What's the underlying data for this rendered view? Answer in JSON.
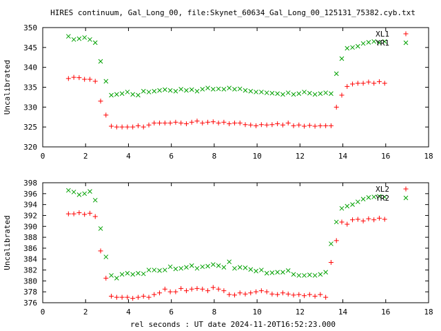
{
  "title": "HIRES continuum, Gal_Long_00, file:Skynet_60634_Gal_Long_00_125131_75382.cyb.txt",
  "xlabel": "rel seconds : UT date 2024-11-20T16:52:23.000",
  "colors": {
    "series_x": "#ff0000",
    "series_y": "#00a000"
  },
  "chart_data": [
    {
      "type": "scatter",
      "ylabel": "Uncalibrated",
      "xlim": [
        0,
        18
      ],
      "ylim": [
        320,
        350
      ],
      "xticks": [
        0,
        2,
        4,
        6,
        8,
        10,
        12,
        14,
        16,
        18
      ],
      "yticks": [
        320,
        325,
        330,
        335,
        340,
        345,
        350
      ],
      "legend_position": "top-right",
      "x": [
        1.2,
        1.45,
        1.7,
        1.95,
        2.2,
        2.45,
        2.7,
        2.95,
        3.2,
        3.45,
        3.7,
        3.95,
        4.2,
        4.45,
        4.7,
        4.95,
        5.2,
        5.45,
        5.7,
        5.95,
        6.2,
        6.45,
        6.7,
        6.95,
        7.2,
        7.45,
        7.7,
        7.95,
        8.2,
        8.45,
        8.7,
        8.95,
        9.2,
        9.45,
        9.7,
        9.95,
        10.2,
        10.45,
        10.7,
        10.95,
        11.2,
        11.45,
        11.7,
        11.95,
        12.2,
        12.45,
        12.7,
        12.95,
        13.2,
        13.45,
        13.7,
        13.95,
        14.2,
        14.45,
        14.7,
        14.95,
        15.2,
        15.45,
        15.7,
        15.95
      ],
      "series": [
        {
          "name": "XL1",
          "marker": "+",
          "values": [
            337.2,
            337.5,
            337.4,
            337.0,
            337.0,
            336.5,
            331.5,
            328.0,
            325.2,
            325.0,
            325.0,
            325.0,
            325.0,
            325.3,
            325.0,
            325.5,
            326.0,
            326.0,
            326.0,
            326.0,
            326.2,
            326.0,
            325.8,
            326.2,
            326.5,
            326.0,
            326.2,
            326.3,
            326.0,
            326.2,
            325.8,
            326.0,
            326.0,
            325.6,
            325.5,
            325.3,
            325.6,
            325.5,
            325.6,
            325.8,
            325.5,
            326.0,
            325.3,
            325.5,
            325.2,
            325.4,
            325.2,
            325.3,
            325.3,
            325.3,
            330.0,
            333.0,
            335.2,
            335.8,
            336.0,
            336.0,
            336.3,
            336.0,
            336.4,
            336.0
          ]
        },
        {
          "name": "YR1",
          "marker": "x",
          "values": [
            347.8,
            347.0,
            347.2,
            347.5,
            347.0,
            346.2,
            341.5,
            336.5,
            333.0,
            333.2,
            333.4,
            333.8,
            333.2,
            333.0,
            334.0,
            333.8,
            334.0,
            334.2,
            334.4,
            334.2,
            334.0,
            334.5,
            334.2,
            334.4,
            334.0,
            334.5,
            334.8,
            334.5,
            334.6,
            334.5,
            334.8,
            334.5,
            334.6,
            334.2,
            334.0,
            333.8,
            333.8,
            333.6,
            333.5,
            333.4,
            333.2,
            333.6,
            333.2,
            333.4,
            333.8,
            333.5,
            333.2,
            333.4,
            333.6,
            333.4,
            338.4,
            342.2,
            344.8,
            345.0,
            345.3,
            346.0,
            346.3,
            346.5,
            346.2,
            346.5
          ]
        }
      ]
    },
    {
      "type": "scatter",
      "ylabel": "Uncalibrated",
      "xlim": [
        0,
        18
      ],
      "ylim": [
        376,
        398
      ],
      "xticks": [
        0,
        2,
        4,
        6,
        8,
        10,
        12,
        14,
        16,
        18
      ],
      "yticks": [
        376,
        378,
        380,
        382,
        384,
        386,
        388,
        390,
        392,
        394,
        396,
        398
      ],
      "legend_position": "top-right",
      "x": [
        1.2,
        1.45,
        1.7,
        1.95,
        2.2,
        2.45,
        2.7,
        2.95,
        3.2,
        3.45,
        3.7,
        3.95,
        4.2,
        4.45,
        4.7,
        4.95,
        5.2,
        5.45,
        5.7,
        5.95,
        6.2,
        6.45,
        6.7,
        6.95,
        7.2,
        7.45,
        7.7,
        7.95,
        8.2,
        8.45,
        8.7,
        8.95,
        9.2,
        9.45,
        9.7,
        9.95,
        10.2,
        10.45,
        10.7,
        10.95,
        11.2,
        11.45,
        11.7,
        11.95,
        12.2,
        12.45,
        12.7,
        12.95,
        13.2,
        13.45,
        13.7,
        13.95,
        14.2,
        14.45,
        14.7,
        14.95,
        15.2,
        15.45,
        15.7,
        15.95
      ],
      "series": [
        {
          "name": "XL2",
          "marker": "+",
          "values": [
            392.3,
            392.3,
            392.5,
            392.2,
            392.4,
            391.8,
            385.5,
            380.5,
            377.2,
            377.0,
            377.0,
            377.0,
            376.8,
            377.0,
            377.2,
            377.0,
            377.5,
            377.8,
            378.5,
            378.0,
            378.0,
            378.6,
            378.2,
            378.5,
            378.6,
            378.5,
            378.2,
            378.8,
            378.5,
            378.2,
            377.5,
            377.4,
            377.8,
            377.6,
            377.8,
            378.0,
            378.2,
            378.0,
            377.6,
            377.5,
            377.8,
            377.6,
            377.4,
            377.5,
            377.3,
            377.5,
            377.2,
            377.5,
            377.0,
            383.4,
            387.4,
            390.8,
            390.4,
            391.2,
            391.3,
            391.0,
            391.4,
            391.2,
            391.5,
            391.3
          ]
        },
        {
          "name": "YR2",
          "marker": "x",
          "values": [
            396.6,
            396.3,
            395.8,
            396.0,
            396.4,
            394.8,
            389.6,
            384.4,
            381.0,
            380.5,
            381.2,
            381.4,
            381.2,
            381.4,
            381.3,
            382.0,
            382.0,
            381.9,
            382.0,
            382.6,
            382.2,
            382.3,
            382.5,
            382.8,
            382.3,
            382.6,
            382.7,
            383.0,
            382.8,
            382.5,
            383.5,
            382.3,
            382.5,
            382.4,
            382.1,
            381.8,
            382.0,
            381.4,
            381.5,
            381.6,
            381.6,
            381.9,
            381.2,
            381.0,
            381.0,
            381.1,
            381.0,
            381.2,
            381.6,
            386.8,
            390.8,
            393.3,
            393.7,
            394.0,
            394.5,
            395.0,
            395.3,
            395.4,
            395.5,
            395.4
          ]
        }
      ]
    }
  ]
}
